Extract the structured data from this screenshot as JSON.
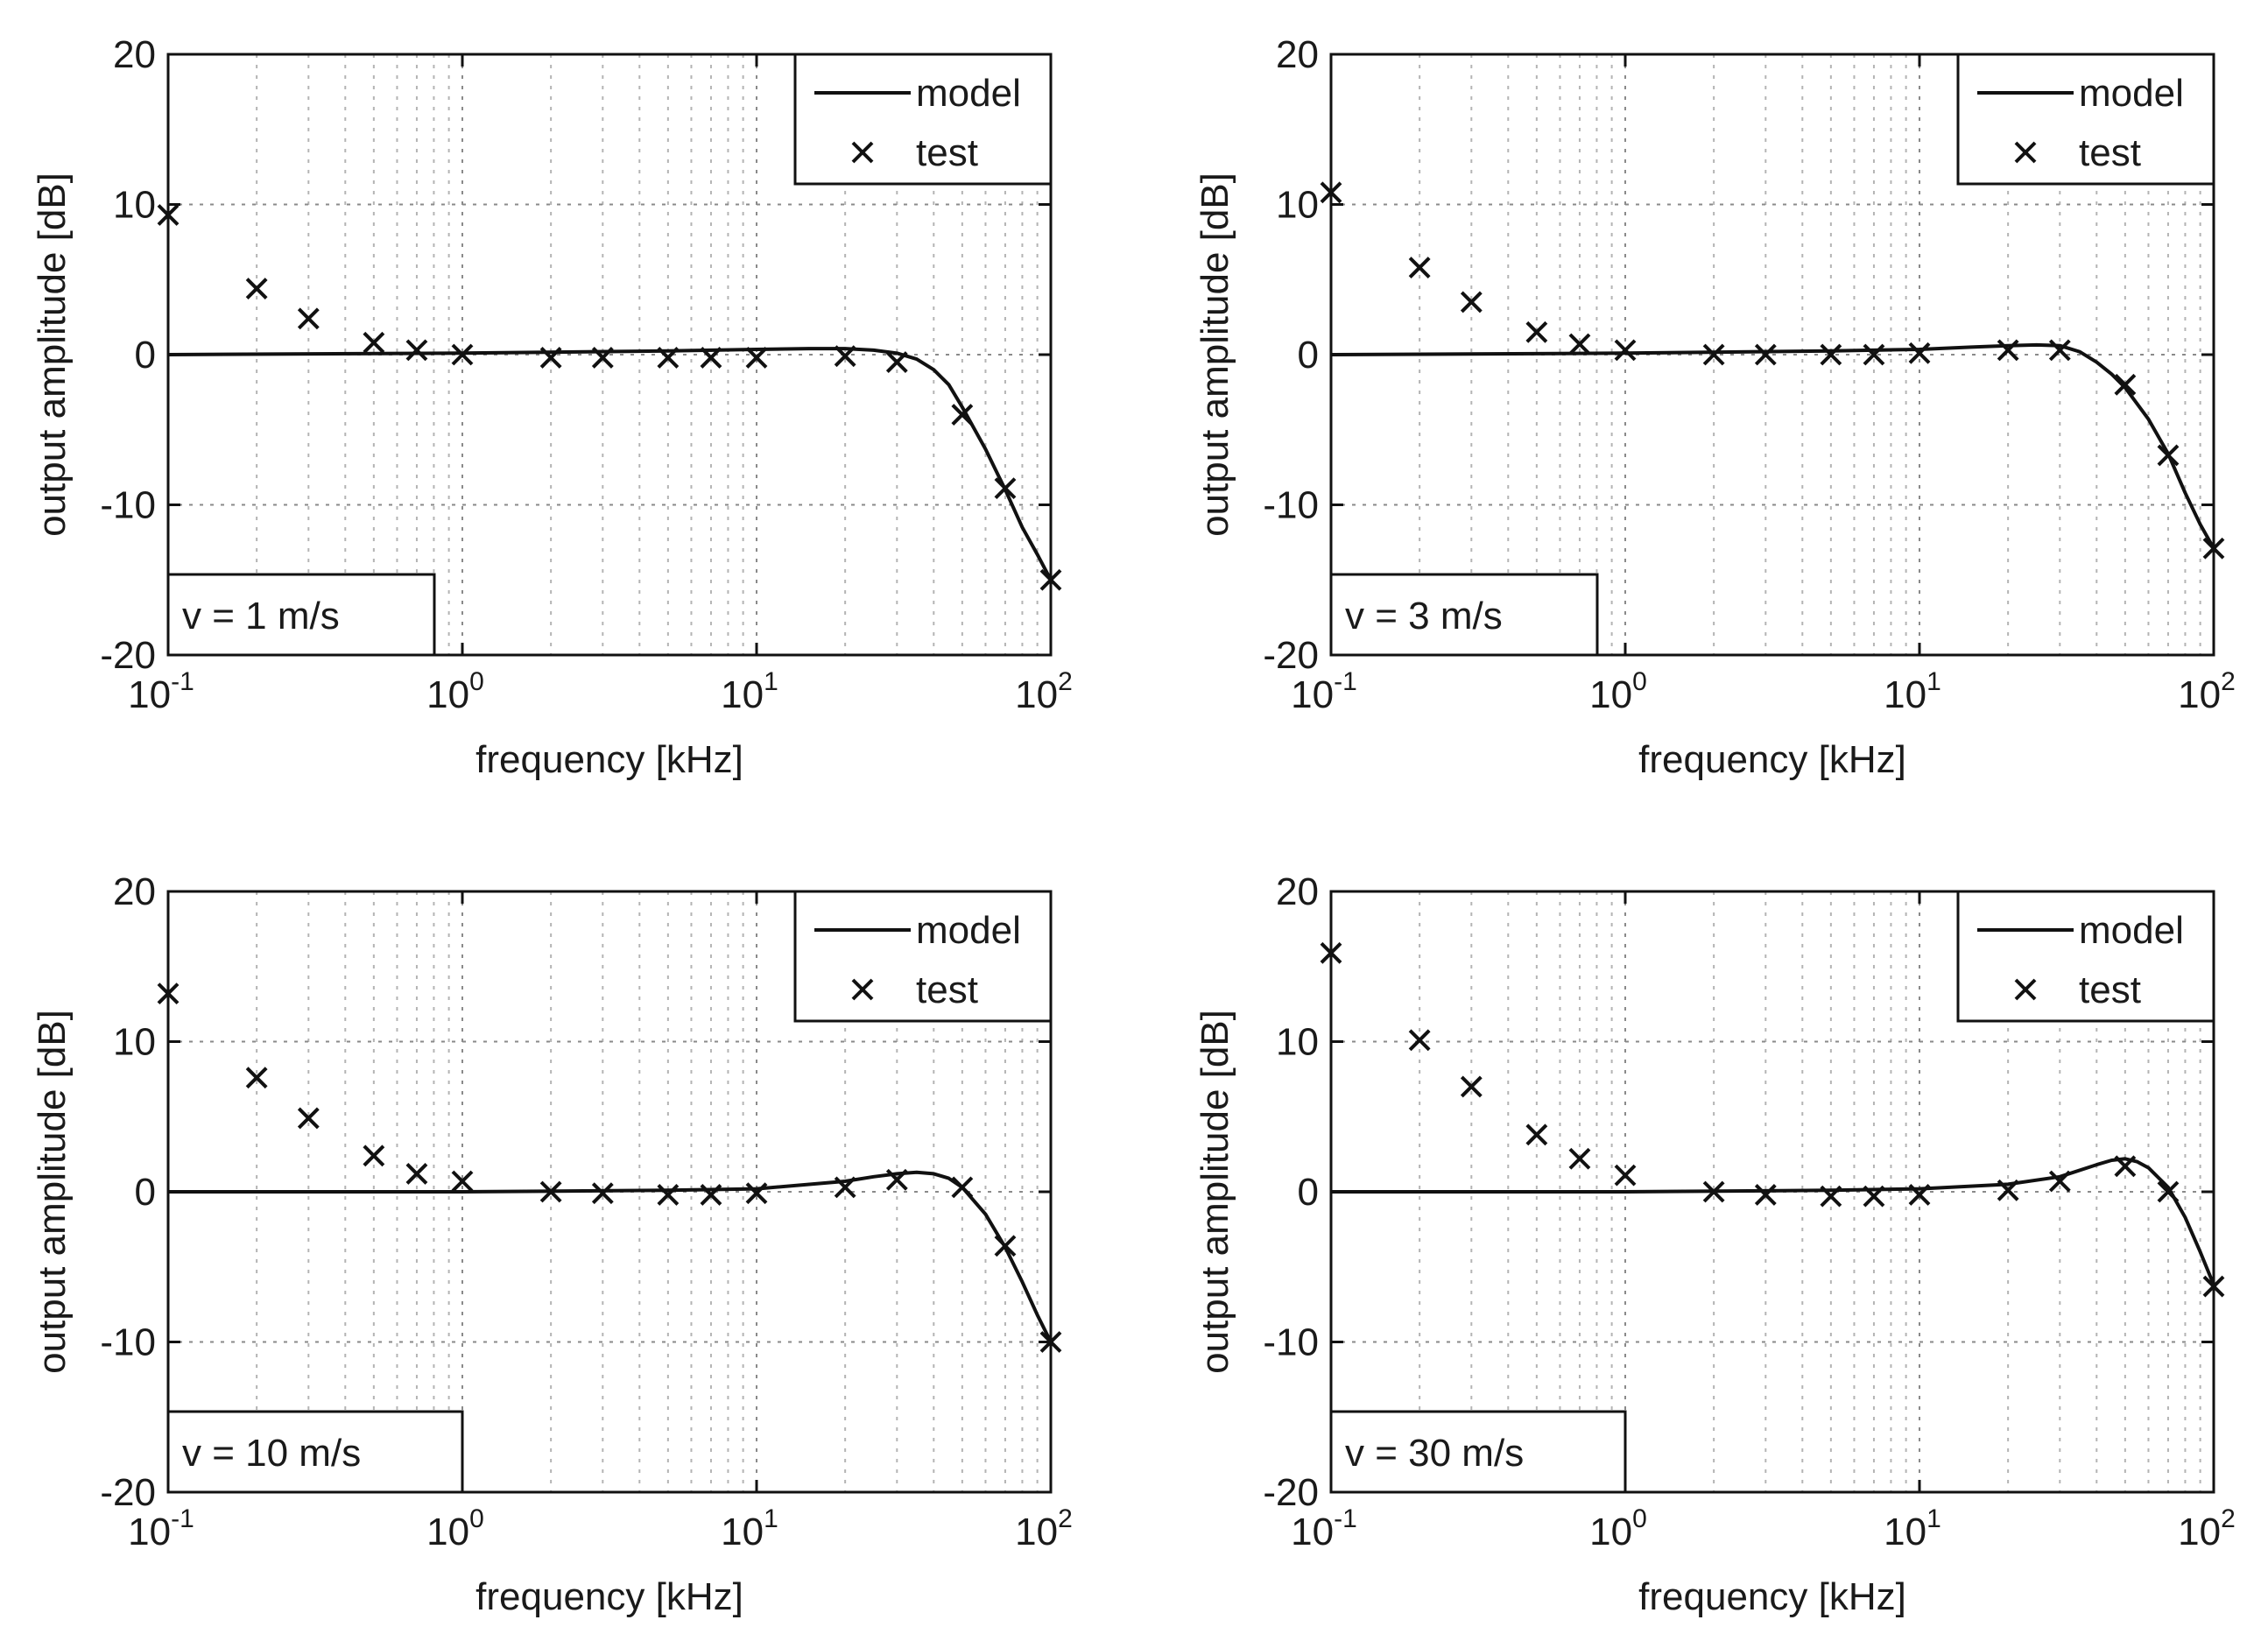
{
  "chart_data": [
    {
      "type": "line",
      "panel": "top-left",
      "annotation": "v = 1 m/s",
      "xlabel": "frequency [kHz]",
      "ylabel": "output amplitude [dB]",
      "xscale": "log",
      "xlim": [
        0.1,
        100
      ],
      "ylim": [
        -20,
        20
      ],
      "x_ticks": [
        {
          "base": "10",
          "exp": "-1"
        },
        {
          "base": "10",
          "exp": "0"
        },
        {
          "base": "10",
          "exp": "1"
        },
        {
          "base": "10",
          "exp": "2"
        }
      ],
      "y_ticks": [
        "20",
        "10",
        "0",
        "-10",
        "-20"
      ],
      "grid": true,
      "legend": {
        "position": "top-right",
        "entries": [
          "model",
          "test"
        ]
      },
      "series": [
        {
          "name": "model",
          "style": "solid-line",
          "x": [
            0.1,
            1,
            5,
            10,
            15,
            20,
            25,
            30,
            35,
            40,
            45,
            50,
            60,
            70,
            80,
            90,
            100
          ],
          "y": [
            0,
            0.1,
            0.25,
            0.35,
            0.4,
            0.4,
            0.3,
            0.1,
            -0.3,
            -1.0,
            -2.0,
            -3.5,
            -6.3,
            -9.0,
            -11.5,
            -13.3,
            -15.0
          ]
        },
        {
          "name": "test",
          "style": "x-marker",
          "x": [
            0.1,
            0.2,
            0.3,
            0.5,
            0.7,
            1,
            2,
            3,
            5,
            7,
            10,
            20,
            30,
            50,
            70,
            100
          ],
          "y": [
            9.3,
            4.4,
            2.4,
            0.8,
            0.3,
            0,
            -0.2,
            -0.2,
            -0.2,
            -0.2,
            -0.2,
            -0.1,
            -0.5,
            -4.0,
            -8.9,
            -15.0
          ]
        }
      ]
    },
    {
      "type": "line",
      "panel": "top-right",
      "annotation": "v = 3 m/s",
      "xlabel": "frequency [kHz]",
      "ylabel": "output amplitude [dB]",
      "xscale": "log",
      "xlim": [
        0.1,
        100
      ],
      "ylim": [
        -20,
        20
      ],
      "x_ticks": [
        {
          "base": "10",
          "exp": "-1"
        },
        {
          "base": "10",
          "exp": "0"
        },
        {
          "base": "10",
          "exp": "1"
        },
        {
          "base": "10",
          "exp": "2"
        }
      ],
      "y_ticks": [
        "20",
        "10",
        "0",
        "-10",
        "-20"
      ],
      "grid": true,
      "legend": {
        "position": "top-right",
        "entries": [
          "model",
          "test"
        ]
      },
      "series": [
        {
          "name": "model",
          "style": "solid-line",
          "x": [
            0.1,
            1,
            5,
            10,
            15,
            20,
            25,
            30,
            35,
            40,
            45,
            50,
            60,
            70,
            80,
            90,
            100
          ],
          "y": [
            0,
            0.1,
            0.25,
            0.35,
            0.5,
            0.6,
            0.65,
            0.6,
            0.2,
            -0.5,
            -1.3,
            -2.2,
            -4.3,
            -6.6,
            -9.2,
            -11.3,
            -12.9
          ]
        },
        {
          "name": "test",
          "style": "x-marker",
          "x": [
            0.1,
            0.2,
            0.3,
            0.5,
            0.7,
            1,
            2,
            3,
            5,
            7,
            10,
            20,
            30,
            50,
            70,
            100
          ],
          "y": [
            10.8,
            5.8,
            3.5,
            1.5,
            0.7,
            0.3,
            0,
            0,
            0,
            0,
            0.1,
            0.3,
            0.3,
            -2.0,
            -6.7,
            -12.9
          ]
        }
      ]
    },
    {
      "type": "line",
      "panel": "bottom-left",
      "annotation": "v = 10 m/s",
      "xlabel": "frequency [kHz]",
      "ylabel": "output amplitude [dB]",
      "xscale": "log",
      "xlim": [
        0.1,
        100
      ],
      "ylim": [
        -20,
        20
      ],
      "x_ticks": [
        {
          "base": "10",
          "exp": "-1"
        },
        {
          "base": "10",
          "exp": "0"
        },
        {
          "base": "10",
          "exp": "1"
        },
        {
          "base": "10",
          "exp": "2"
        }
      ],
      "y_ticks": [
        "20",
        "10",
        "0",
        "-10",
        "-20"
      ],
      "grid": true,
      "legend": {
        "position": "top-right",
        "entries": [
          "model",
          "test"
        ]
      },
      "series": [
        {
          "name": "model",
          "style": "solid-line",
          "x": [
            0.1,
            1,
            5,
            10,
            20,
            25,
            30,
            35,
            40,
            45,
            50,
            60,
            70,
            80,
            90,
            100
          ],
          "y": [
            0,
            0,
            0.1,
            0.2,
            0.7,
            1.0,
            1.2,
            1.3,
            1.2,
            0.9,
            0.3,
            -1.5,
            -3.7,
            -6.0,
            -8.2,
            -10.0
          ]
        },
        {
          "name": "test",
          "style": "x-marker",
          "x": [
            0.1,
            0.2,
            0.3,
            0.5,
            0.7,
            1,
            2,
            3,
            5,
            7,
            10,
            20,
            30,
            50,
            70,
            100
          ],
          "y": [
            13.2,
            7.6,
            4.9,
            2.4,
            1.2,
            0.7,
            0,
            -0.1,
            -0.2,
            -0.2,
            -0.1,
            0.3,
            0.8,
            0.3,
            -3.6,
            -10.0
          ]
        }
      ]
    },
    {
      "type": "line",
      "panel": "bottom-right",
      "annotation": "v = 30 m/s",
      "xlabel": "frequency [kHz]",
      "ylabel": "output amplitude [dB]",
      "xscale": "log",
      "xlim": [
        0.1,
        100
      ],
      "ylim": [
        -20,
        20
      ],
      "x_ticks": [
        {
          "base": "10",
          "exp": "-1"
        },
        {
          "base": "10",
          "exp": "0"
        },
        {
          "base": "10",
          "exp": "1"
        },
        {
          "base": "10",
          "exp": "2"
        }
      ],
      "y_ticks": [
        "20",
        "10",
        "0",
        "-10",
        "-20"
      ],
      "grid": true,
      "legend": {
        "position": "top-right",
        "entries": [
          "model",
          "test"
        ]
      },
      "series": [
        {
          "name": "model",
          "style": "solid-line",
          "x": [
            0.1,
            1,
            5,
            10,
            20,
            30,
            40,
            45,
            50,
            55,
            60,
            70,
            80,
            90,
            100
          ],
          "y": [
            0,
            0,
            0.1,
            0.2,
            0.5,
            1.0,
            1.8,
            2.1,
            2.2,
            2.0,
            1.6,
            0.3,
            -1.7,
            -4.0,
            -6.2
          ]
        },
        {
          "name": "test",
          "style": "x-marker",
          "x": [
            0.1,
            0.2,
            0.3,
            0.5,
            0.7,
            1,
            2,
            3,
            5,
            7,
            10,
            20,
            30,
            50,
            70,
            100
          ],
          "y": [
            15.9,
            10.1,
            7.0,
            3.8,
            2.2,
            1.1,
            0,
            -0.2,
            -0.3,
            -0.3,
            -0.2,
            0.1,
            0.7,
            1.7,
            0,
            -6.3
          ]
        }
      ]
    }
  ]
}
